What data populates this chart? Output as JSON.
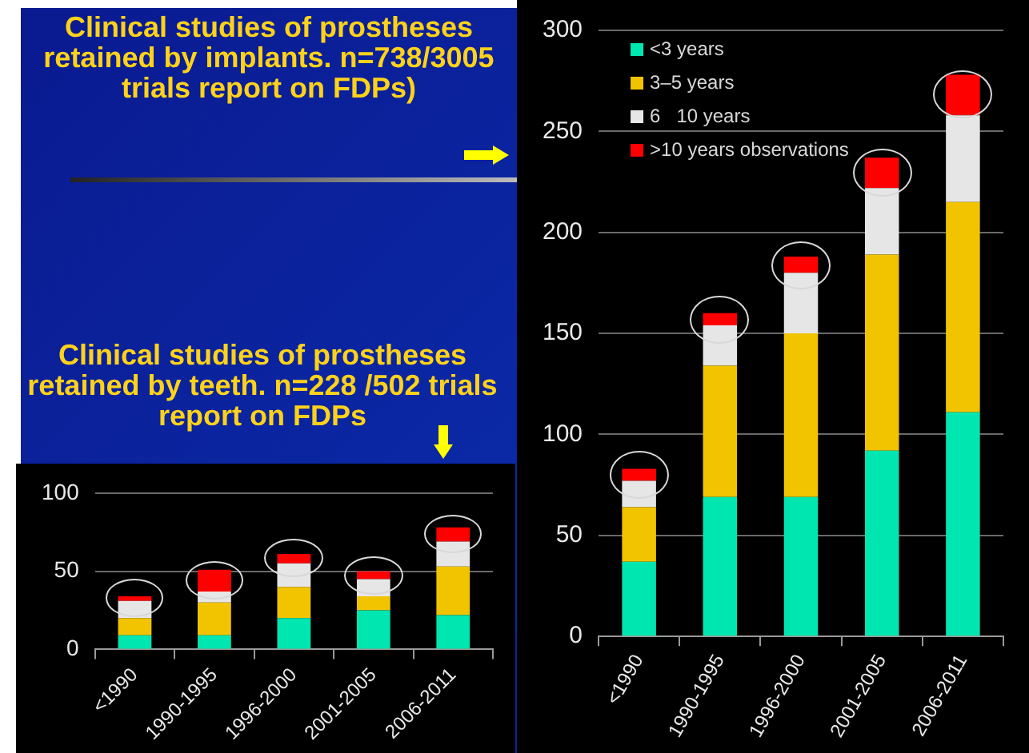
{
  "chart_data": [
    {
      "type": "bar",
      "title": "Clinical studies of prostheses retained by implants. n=738/3005 trials report on FDPs)",
      "categories": [
        "<1990",
        "1990-1995",
        "1996-2000",
        "2001-2005",
        "2006-2011"
      ],
      "stacked": true,
      "grid": "y",
      "legend": "top left",
      "ylim": [
        0,
        300
      ],
      "yticks": [
        0,
        50,
        100,
        150,
        200,
        250,
        300
      ],
      "series": [
        {
          "name": "<3 years",
          "color": "#00e6b0",
          "values": [
            37,
            69,
            69,
            92,
            111
          ]
        },
        {
          "name": "3–5 years",
          "color": "#f2c400",
          "values": [
            27,
            65,
            81,
            97,
            104
          ]
        },
        {
          "name": "6   10 years",
          "color": "#e6e6e6",
          "values": [
            13,
            20,
            30,
            33,
            43
          ]
        },
        {
          "name": ">10 years observations",
          "color": "#ff0000",
          "values": [
            6,
            6,
            8,
            15,
            20
          ]
        }
      ]
    },
    {
      "type": "bar",
      "title": "Clinical studies of prostheses retained by teeth. n=228 /502 trials report on FDPs",
      "categories": [
        "<1990",
        "1990-1995",
        "1996-2000",
        "2001-2005",
        "2006-2011"
      ],
      "stacked": true,
      "grid": "y",
      "ylim": [
        0,
        100
      ],
      "yticks": [
        0,
        50,
        100
      ],
      "series": [
        {
          "color": "#00e6b0",
          "values": [
            9,
            9,
            20,
            25,
            22
          ]
        },
        {
          "color": "#f2c400",
          "values": [
            11,
            21,
            20,
            9,
            31
          ]
        },
        {
          "color": "#e6e6e6",
          "values": [
            11,
            7,
            15,
            11,
            16
          ]
        },
        {
          "color": "#ff0000",
          "values": [
            3,
            14,
            6,
            5,
            9
          ]
        }
      ]
    }
  ]
}
